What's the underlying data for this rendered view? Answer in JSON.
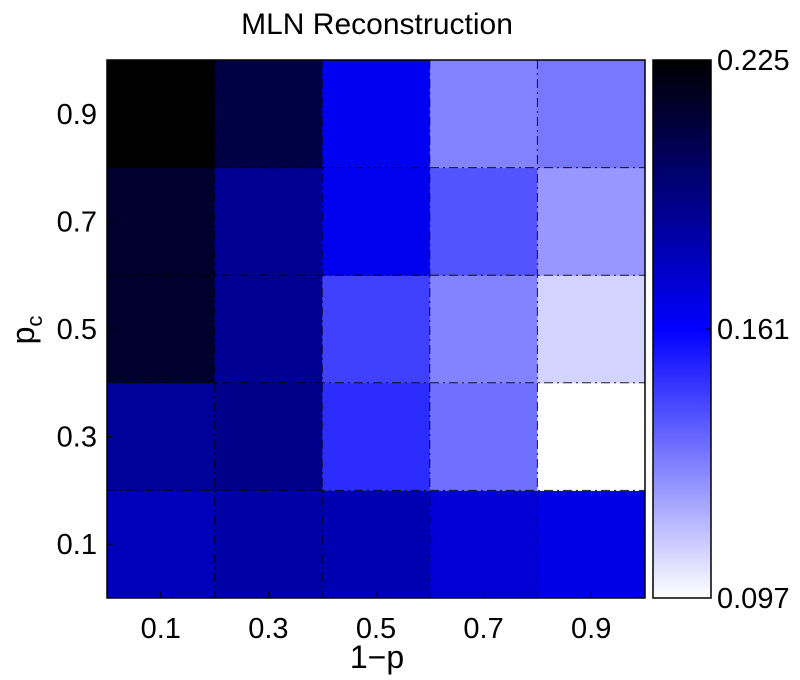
{
  "chart_data": {
    "type": "heatmap",
    "title": "MLN Reconstruction",
    "xlabel": "1−p",
    "ylabel_base": "p",
    "ylabel_sub": "c",
    "x_categories": [
      "0.1",
      "0.3",
      "0.5",
      "0.7",
      "0.9"
    ],
    "y_categories": [
      "0.1",
      "0.3",
      "0.5",
      "0.7",
      "0.9"
    ],
    "values": [
      [
        0.178,
        0.183,
        0.18,
        0.171,
        0.167
      ],
      [
        0.186,
        0.19,
        0.15,
        0.133,
        0.097
      ],
      [
        0.214,
        0.188,
        0.145,
        0.128,
        0.108
      ],
      [
        0.214,
        0.188,
        0.165,
        0.14,
        0.123
      ],
      [
        0.225,
        0.208,
        0.164,
        0.128,
        0.131
      ]
    ],
    "value_order": "rows from y=0.1 (bottom) to y=0.9 (top), columns from x=0.1 to x=0.9",
    "colorbar": {
      "min": 0.097,
      "max": 0.225,
      "ticks": [
        "0.097",
        "0.161",
        "0.225"
      ],
      "colormap": [
        "#ffffff",
        "#0000ff",
        "#000000"
      ]
    },
    "grid": true,
    "grid_style": "dash-dot"
  }
}
